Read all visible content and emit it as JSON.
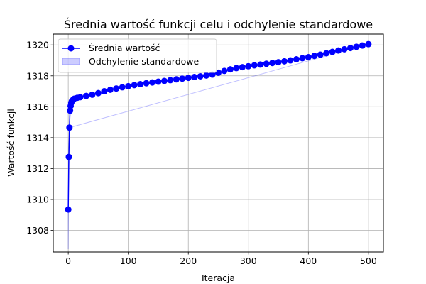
{
  "chart_data": {
    "type": "line",
    "title": "Średnia wartość funkcji celu i odchylenie standardowe",
    "xlabel": "Iteracja",
    "ylabel": "Wartość funkcji",
    "xlim": [
      -25,
      525
    ],
    "ylim": [
      1306.6,
      1320.7
    ],
    "xticks": [
      0,
      100,
      200,
      300,
      400,
      500
    ],
    "yticks": [
      1308,
      1310,
      1312,
      1314,
      1316,
      1318,
      1320
    ],
    "grid": true,
    "legend_position": "upper-left",
    "series": [
      {
        "name": "Średnia wartość",
        "color": "#0000ff",
        "marker": "circle",
        "x": [
          0,
          1,
          2,
          3,
          4,
          5,
          6,
          8,
          10,
          15,
          20,
          30,
          40,
          50,
          60,
          70,
          80,
          90,
          100,
          110,
          120,
          130,
          140,
          150,
          160,
          170,
          180,
          190,
          200,
          210,
          220,
          230,
          240,
          250,
          260,
          270,
          280,
          290,
          300,
          310,
          320,
          330,
          340,
          350,
          360,
          370,
          380,
          390,
          400,
          410,
          420,
          430,
          440,
          450,
          460,
          470,
          480,
          490,
          500
        ],
        "values": [
          1309.35,
          1312.75,
          1314.65,
          1315.75,
          1316.05,
          1316.25,
          1316.35,
          1316.45,
          1316.52,
          1316.58,
          1316.62,
          1316.7,
          1316.78,
          1316.88,
          1317.0,
          1317.1,
          1317.18,
          1317.26,
          1317.33,
          1317.4,
          1317.46,
          1317.52,
          1317.57,
          1317.62,
          1317.67,
          1317.72,
          1317.77,
          1317.82,
          1317.87,
          1317.92,
          1317.97,
          1318.02,
          1318.08,
          1318.2,
          1318.32,
          1318.42,
          1318.5,
          1318.56,
          1318.62,
          1318.68,
          1318.73,
          1318.78,
          1318.83,
          1318.88,
          1318.94,
          1319.0,
          1319.07,
          1319.14,
          1319.21,
          1319.29,
          1319.37,
          1319.46,
          1319.55,
          1319.64,
          1319.72,
          1319.8,
          1319.88,
          1319.96,
          1320.05
        ]
      },
      {
        "name": "Odchylenie standardowe",
        "color": "#0000ff",
        "type": "area",
        "x": [
          0,
          1,
          2,
          500
        ],
        "upper": [
          1309.35,
          1312.75,
          1314.65,
          1320.05
        ],
        "lower": [
          1306.8,
          1312.75,
          1314.65,
          1320.05
        ]
      }
    ]
  }
}
